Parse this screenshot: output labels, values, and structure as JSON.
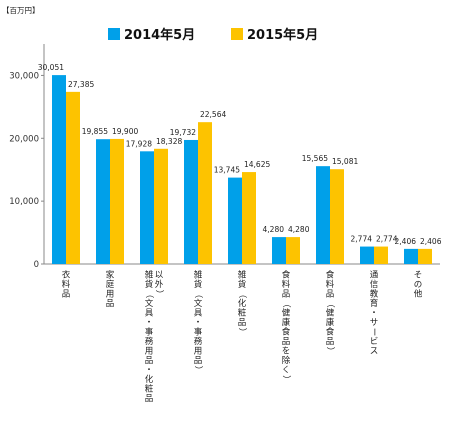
{
  "chart_data": {
    "type": "bar",
    "unit_label": "【百万円】",
    "categories": [
      "衣料品",
      "家庭用品",
      "雑貨（文具・事務用品・化粧品以外）",
      "雑貨（文具・事務用品）",
      "雑貨（化粧品）",
      "食料品（健康食品を除く）",
      "食料品（健康食品）",
      "通信教育・サービス",
      "その他"
    ],
    "series": [
      {
        "name": "2014年5月",
        "color": "#00a0e9",
        "values": [
          30051,
          19855,
          17928,
          19732,
          13745,
          4280,
          15565,
          2774,
          2406
        ]
      },
      {
        "name": "2015年5月",
        "color": "#fdc300",
        "values": [
          27385,
          19900,
          18328,
          22564,
          14625,
          4280,
          15081,
          2774,
          2406
        ]
      }
    ],
    "data_labels": [
      [
        "30,051",
        "19,855",
        "17,928",
        "19,732",
        "13,745",
        "4,280",
        "15,565",
        "2,774",
        "2,406"
      ],
      [
        "27,385",
        "19,900",
        "18,328",
        "22,564",
        "14,625",
        "4,280",
        "15,081",
        "2,774",
        "2,406"
      ]
    ],
    "y_ticks": [
      0,
      10000,
      20000,
      30000
    ],
    "y_tick_labels": [
      "0",
      "10,000",
      "20,000",
      "30,000"
    ],
    "ylim": [
      0,
      35000
    ],
    "legend_position": "top",
    "grid": false
  }
}
